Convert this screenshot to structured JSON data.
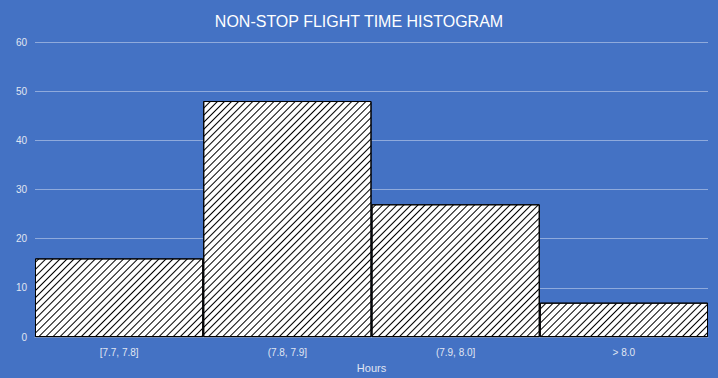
{
  "chart_data": {
    "type": "histogram",
    "title": "NON-STOP FLIGHT TIME HISTOGRAM",
    "x_label": "Hours",
    "categories": [
      "[7.7, 7.8]",
      "(7.8, 7.9]",
      "(7.9, 8.0]",
      "> 8.0"
    ],
    "values": [
      16,
      48,
      27,
      7
    ],
    "color": "#ffffff",
    "ylim": [
      0,
      60
    ],
    "yticks": [
      0,
      10,
      20,
      30,
      40,
      50,
      60
    ],
    "grid": true
  }
}
